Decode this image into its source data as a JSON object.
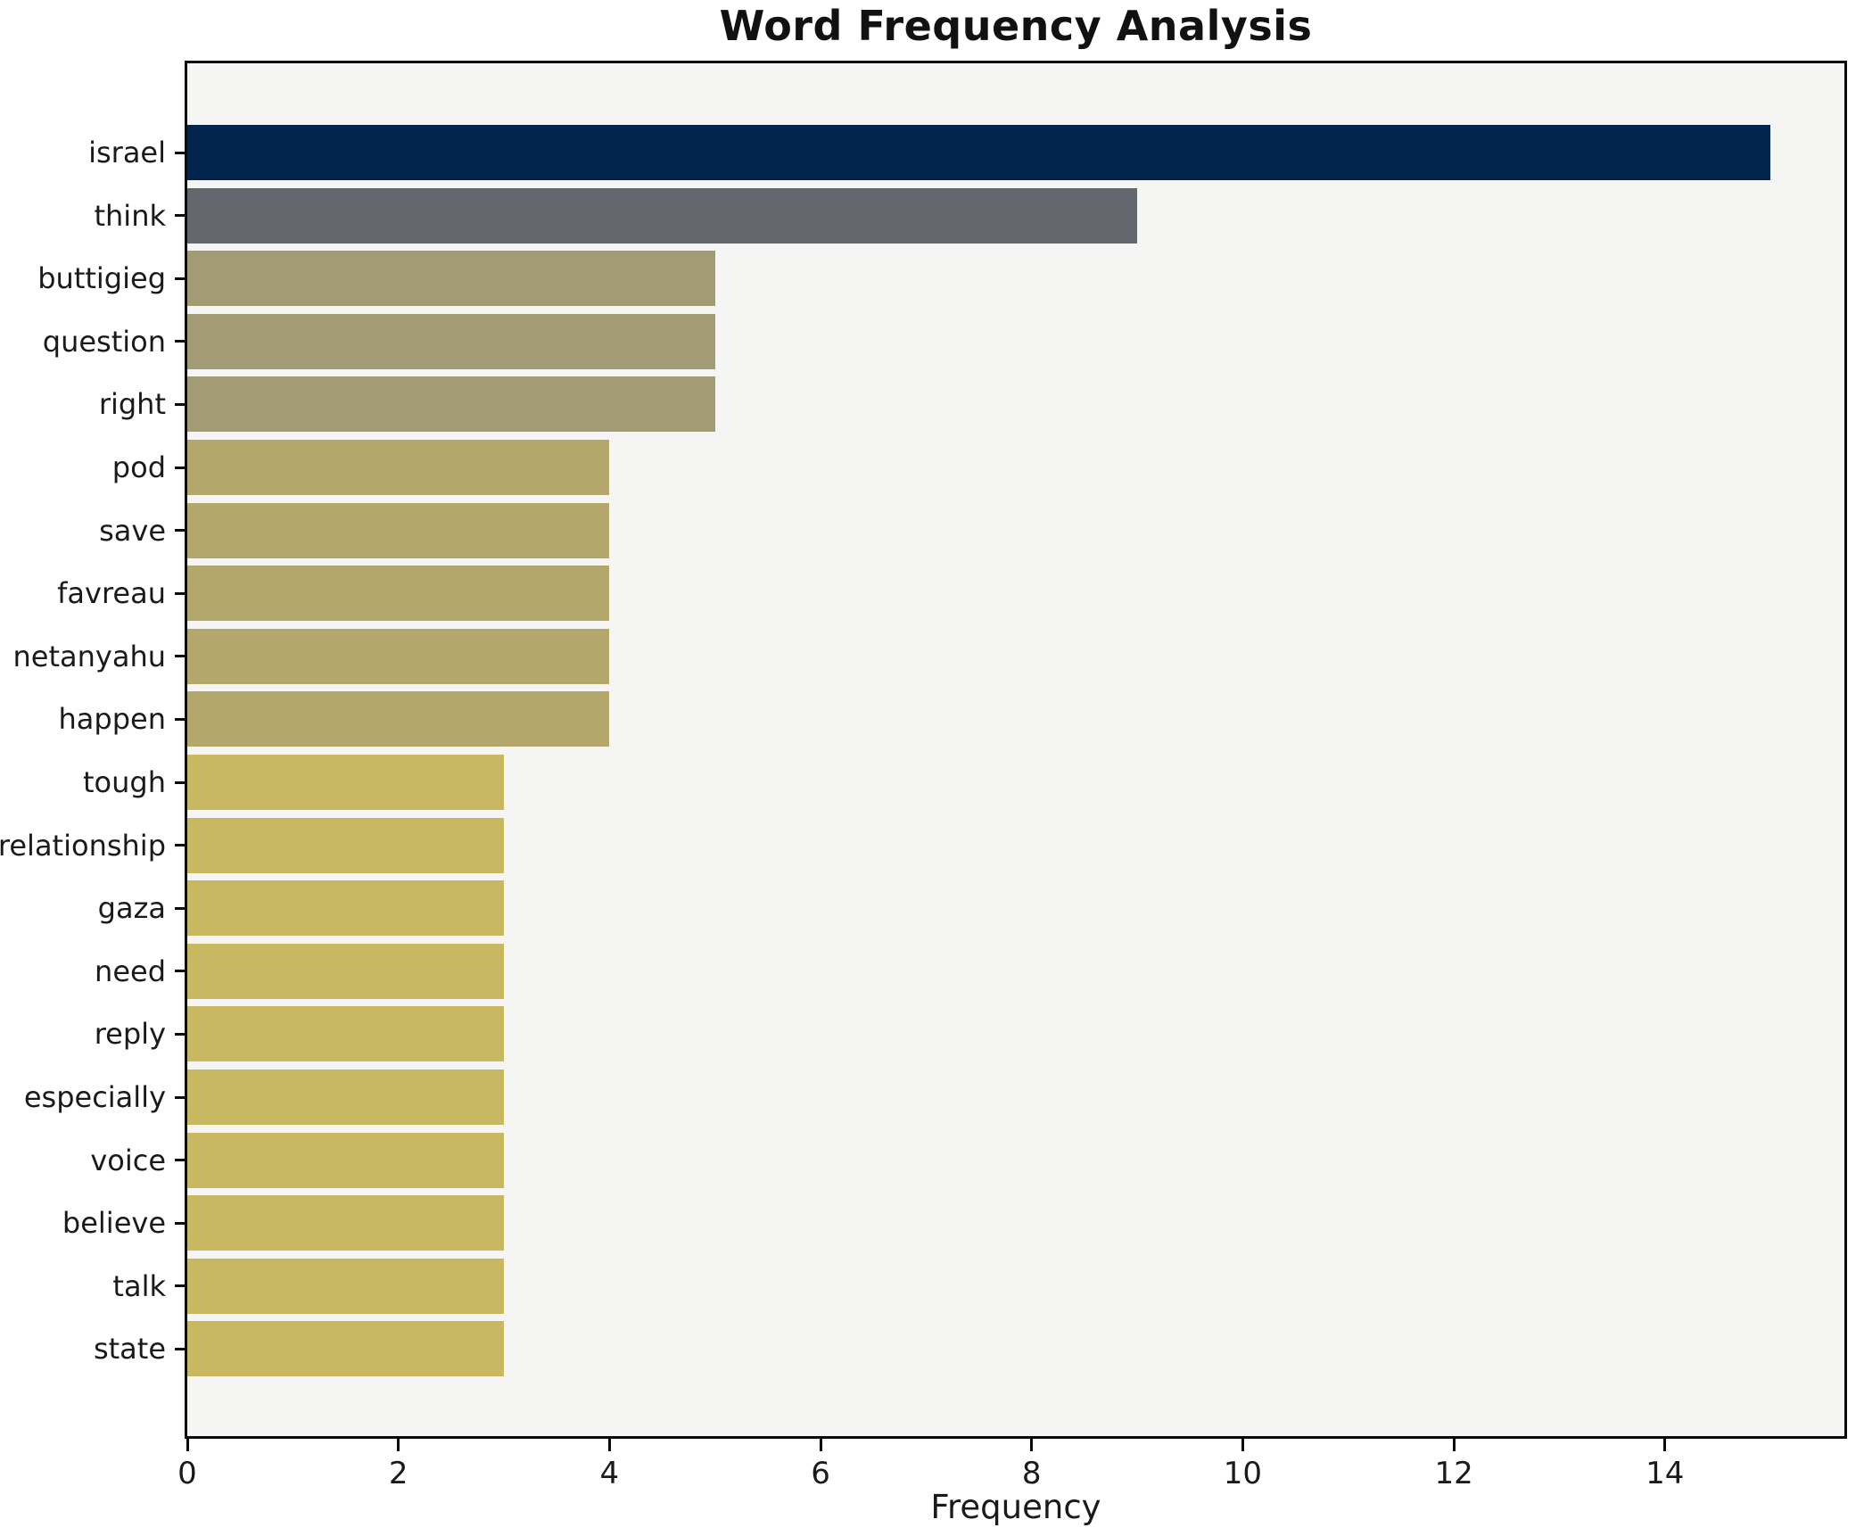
{
  "chart_data": {
    "type": "bar",
    "orientation": "horizontal",
    "title": "Word Frequency Analysis",
    "xlabel": "Frequency",
    "ylabel": "",
    "categories": [
      "israel",
      "think",
      "buttigieg",
      "question",
      "right",
      "pod",
      "save",
      "favreau",
      "netanyahu",
      "happen",
      "tough",
      "relationship",
      "gaza",
      "need",
      "reply",
      "especially",
      "voice",
      "believe",
      "talk",
      "state"
    ],
    "values": [
      15,
      9,
      5,
      5,
      5,
      4,
      4,
      4,
      4,
      4,
      3,
      3,
      3,
      3,
      3,
      3,
      3,
      3,
      3,
      3
    ],
    "bar_colors": [
      "#02254e",
      "#64676e",
      "#a39b73",
      "#a39b73",
      "#a39b73",
      "#b4a76b",
      "#b4a76b",
      "#b4a76b",
      "#b4a76b",
      "#b4a76b",
      "#c9b862",
      "#c9b862",
      "#c9b862",
      "#c9b862",
      "#c9b862",
      "#c9b862",
      "#c9b862",
      "#c9b862",
      "#c9b862",
      "#c9b862"
    ],
    "x_ticks": [
      0,
      2,
      4,
      6,
      8,
      10,
      12,
      14
    ],
    "xlim": [
      0,
      15.7
    ],
    "grid": false,
    "legend": null,
    "colors": {
      "figure_background": "#ffffff",
      "plot_background": "#f5f5f4",
      "spine": "#0a0a0a",
      "text": "#1a1a1a"
    }
  }
}
